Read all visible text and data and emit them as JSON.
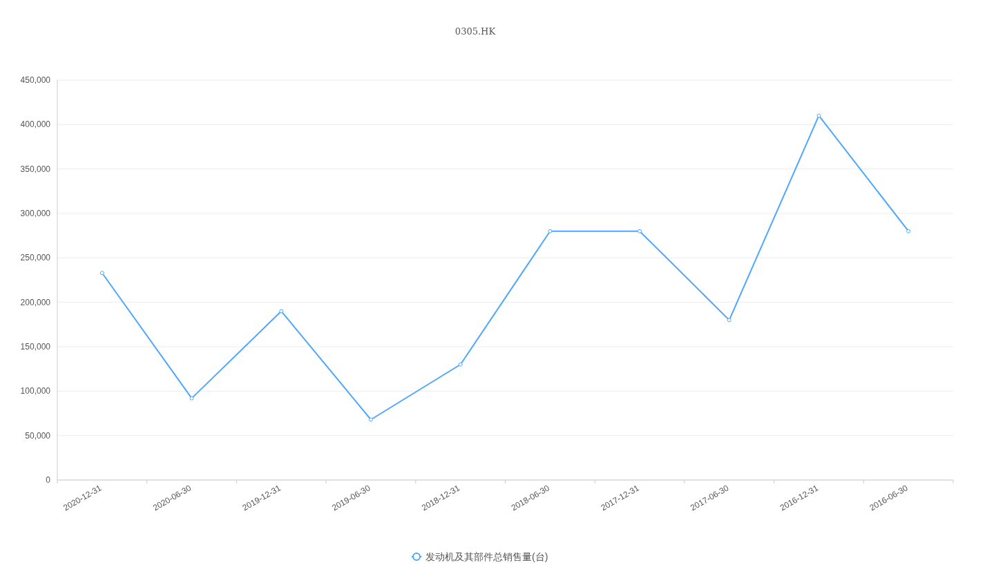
{
  "chart_data": {
    "type": "line",
    "title": "0305.HK",
    "categories": [
      "2020-12-31",
      "2020-06-30",
      "2019-12-31",
      "2019-06-30",
      "2018-12-31",
      "2018-06-30",
      "2017-12-31",
      "2017-06-30",
      "2016-12-31",
      "2016-06-30"
    ],
    "series": [
      {
        "name": "发动机及其部件总销售量(台)",
        "color": "#4da6ff",
        "values": [
          233000,
          92000,
          190000,
          68000,
          130000,
          280000,
          280000,
          180000,
          410000,
          280000
        ]
      }
    ],
    "ylim": [
      0,
      450000
    ],
    "yticks": [
      {
        "value": 0,
        "label": "0"
      },
      {
        "value": 50000,
        "label": "50,000"
      },
      {
        "value": 100000,
        "label": "100,000"
      },
      {
        "value": 150000,
        "label": "150,000"
      },
      {
        "value": 200000,
        "label": "200,000"
      },
      {
        "value": 250000,
        "label": "250,000"
      },
      {
        "value": 300000,
        "label": "300,000"
      },
      {
        "value": 350000,
        "label": "350,000"
      },
      {
        "value": 400000,
        "label": "400,000"
      },
      {
        "value": 450000,
        "label": "450,000"
      }
    ],
    "grid": "y",
    "legend": "bottom",
    "marker": "circle",
    "line_style": "solid"
  }
}
